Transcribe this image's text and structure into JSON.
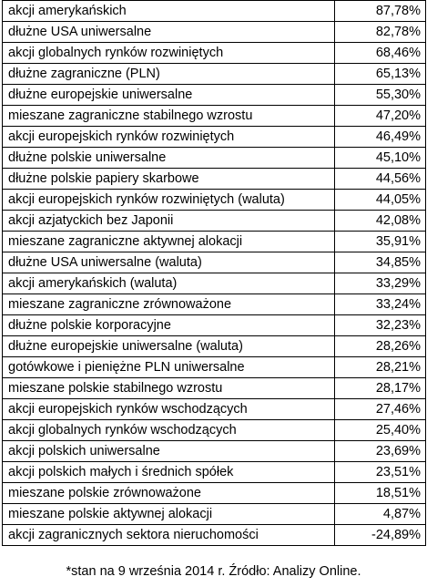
{
  "table": {
    "rows": [
      {
        "category": "akcji amerykańskich",
        "value": "87,78%"
      },
      {
        "category": "dłużne USA uniwersalne",
        "value": "82,78%"
      },
      {
        "category": "akcji globalnych rynków rozwiniętych",
        "value": "68,46%"
      },
      {
        "category": "dłużne zagraniczne (PLN)",
        "value": "65,13%"
      },
      {
        "category": "dłużne europejskie uniwersalne",
        "value": "55,30%"
      },
      {
        "category": "mieszane zagraniczne stabilnego wzrostu",
        "value": "47,20%"
      },
      {
        "category": "akcji europejskich rynków rozwiniętych",
        "value": "46,49%"
      },
      {
        "category": "dłużne polskie uniwersalne",
        "value": "45,10%"
      },
      {
        "category": "dłużne polskie papiery skarbowe",
        "value": "44,56%"
      },
      {
        "category": "akcji europejskich rynków rozwiniętych (waluta)",
        "value": "44,05%"
      },
      {
        "category": "akcji azjatyckich bez Japonii",
        "value": "42,08%"
      },
      {
        "category": "mieszane zagraniczne aktywnej alokacji",
        "value": "35,91%"
      },
      {
        "category": "dłużne USA uniwersalne (waluta)",
        "value": "34,85%"
      },
      {
        "category": "akcji amerykańskich (waluta)",
        "value": "33,29%"
      },
      {
        "category": "mieszane zagraniczne zrównoważone",
        "value": "33,24%"
      },
      {
        "category": "dłużne polskie korporacyjne",
        "value": "32,23%"
      },
      {
        "category": "dłużne europejskie uniwersalne (waluta)",
        "value": "28,26%"
      },
      {
        "category": "gotówkowe i pieniężne PLN uniwersalne",
        "value": "28,21%"
      },
      {
        "category": "mieszane polskie stabilnego wzrostu",
        "value": "28,17%"
      },
      {
        "category": "akcji europejskich rynków wschodzących",
        "value": "27,46%"
      },
      {
        "category": "akcji globalnych rynków wschodzących",
        "value": "25,40%"
      },
      {
        "category": "akcji polskich uniwersalne",
        "value": "23,69%"
      },
      {
        "category": "akcji polskich małych i średnich spółek",
        "value": "23,51%"
      },
      {
        "category": "mieszane polskie zrównoważone",
        "value": "18,51%"
      },
      {
        "category": "mieszane polskie aktywnej alokacji",
        "value": "4,87%"
      },
      {
        "category": "akcji zagranicznych sektora nieruchomości",
        "value": "-24,89%"
      }
    ]
  },
  "footnote": "*stan na 9 września 2014 r. Źródło: Analizy Online."
}
